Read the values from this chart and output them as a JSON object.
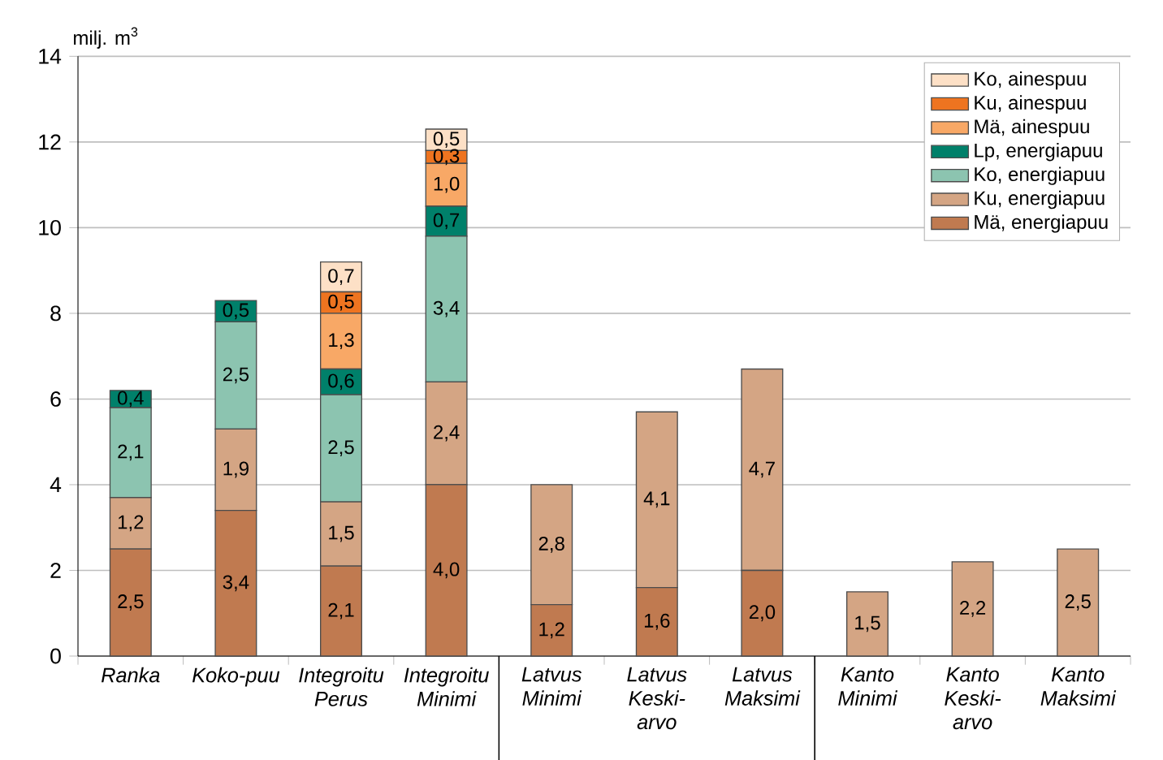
{
  "chart_data": {
    "type": "bar",
    "stacked": true,
    "ylabel": "milj. m$^{3}$",
    "categories": [
      "Ranka",
      "Koko-puu",
      "Integroitu Perus",
      "Integroitu Minimi",
      "Latvus Minimi",
      "Latvus Keski-arvo",
      "Latvus Maksimi",
      "Kanto Minimi",
      "Kanto Keski-arvo",
      "Kanto Maksimi"
    ],
    "ylim": [
      0,
      14
    ],
    "yticks": [
      0,
      2,
      4,
      6,
      8,
      10,
      12,
      14
    ],
    "grid": "y",
    "legend": "top right",
    "series": [
      {
        "name": "Mä, energiapuu",
        "color": "#c07a50",
        "values": [
          2.5,
          3.4,
          2.1,
          4.0,
          1.2,
          1.6,
          2.0,
          null,
          null,
          null
        ],
        "value_labels": [
          "2,5",
          "3,4",
          "2,1",
          "4,0",
          "1,2",
          "1,6",
          "2,0",
          null,
          null,
          null
        ]
      },
      {
        "name": "Ku, energiapuu",
        "color": "#d4a584",
        "values": [
          1.2,
          1.9,
          1.5,
          2.4,
          2.8,
          4.1,
          4.7,
          1.5,
          2.2,
          2.5
        ],
        "value_labels": [
          "1,2",
          "1,9",
          "1,5",
          "2,4",
          "2,8",
          "4,1",
          "4,7",
          "1,5",
          "2,2",
          "2,5"
        ]
      },
      {
        "name": "Ko, energiapuu",
        "color": "#8cc4b0",
        "values": [
          2.1,
          2.5,
          2.5,
          3.4,
          null,
          null,
          null,
          null,
          null,
          null
        ],
        "value_labels": [
          "2,1",
          "2,5",
          "2,5",
          "3,4",
          null,
          null,
          null,
          null,
          null,
          null
        ]
      },
      {
        "name": "Lp, energiapuu",
        "color": "#00806a",
        "values": [
          0.4,
          0.5,
          0.6,
          0.7,
          null,
          null,
          null,
          null,
          null,
          null
        ],
        "value_labels": [
          "0,4",
          "0,5",
          "0,6",
          "0,7",
          null,
          null,
          null,
          null,
          null,
          null
        ]
      },
      {
        "name": "Mä, ainespuu",
        "color": "#f8a866",
        "values": [
          null,
          null,
          1.3,
          1.0,
          null,
          null,
          null,
          null,
          null,
          null
        ],
        "value_labels": [
          null,
          null,
          "1,3",
          "1,0",
          null,
          null,
          null,
          null,
          null,
          null
        ]
      },
      {
        "name": "Ku, ainespuu",
        "color": "#ee7420",
        "values": [
          null,
          null,
          0.5,
          0.3,
          null,
          null,
          null,
          null,
          null,
          null
        ],
        "value_labels": [
          null,
          null,
          "0,5",
          "0,3",
          null,
          null,
          null,
          null,
          null,
          null
        ]
      },
      {
        "name": "Ko, ainespuu",
        "color": "#fde0c6",
        "values": [
          null,
          null,
          0.7,
          0.5,
          null,
          null,
          null,
          null,
          null,
          null
        ],
        "value_labels": [
          null,
          null,
          "0,7",
          "0,5",
          null,
          null,
          null,
          null,
          null,
          null
        ]
      }
    ]
  }
}
